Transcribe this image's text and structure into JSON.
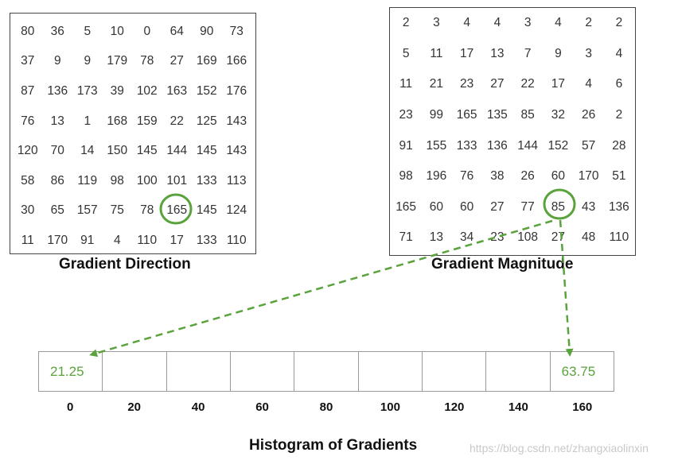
{
  "gradient_direction": {
    "caption": "Gradient Direction",
    "rows": [
      [
        "80",
        "36",
        "5",
        "10",
        "0",
        "64",
        "90",
        "73"
      ],
      [
        "37",
        "9",
        "9",
        "179",
        "78",
        "27",
        "169",
        "166"
      ],
      [
        "87",
        "136",
        "173",
        "39",
        "102",
        "163",
        "152",
        "176"
      ],
      [
        "76",
        "13",
        "1",
        "168",
        "159",
        "22",
        "125",
        "143"
      ],
      [
        "120",
        "70",
        "14",
        "150",
        "145",
        "144",
        "145",
        "143"
      ],
      [
        "58",
        "86",
        "119",
        "98",
        "100",
        "101",
        "133",
        "113"
      ],
      [
        "30",
        "65",
        "157",
        "75",
        "78",
        "165",
        "145",
        "124"
      ],
      [
        "11",
        "170",
        "91",
        "4",
        "110",
        "17",
        "133",
        "110"
      ]
    ],
    "highlighted": "165"
  },
  "gradient_magnitude": {
    "caption": "Gradient Magnitude",
    "rows": [
      [
        "2",
        "3",
        "4",
        "4",
        "3",
        "4",
        "2",
        "2"
      ],
      [
        "5",
        "11",
        "17",
        "13",
        "7",
        "9",
        "3",
        "4"
      ],
      [
        "11",
        "21",
        "23",
        "27",
        "22",
        "17",
        "4",
        "6"
      ],
      [
        "23",
        "99",
        "165",
        "135",
        "85",
        "32",
        "26",
        "2"
      ],
      [
        "91",
        "155",
        "133",
        "136",
        "144",
        "152",
        "57",
        "28"
      ],
      [
        "98",
        "196",
        "76",
        "38",
        "26",
        "60",
        "170",
        "51"
      ],
      [
        "165",
        "60",
        "60",
        "27",
        "77",
        "85",
        "43",
        "136"
      ],
      [
        "71",
        "13",
        "34",
        "23",
        "108",
        "27",
        "48",
        "110"
      ]
    ],
    "highlighted": "85"
  },
  "histogram": {
    "caption": "Histogram of Gradients",
    "bins": [
      "0",
      "20",
      "40",
      "60",
      "80",
      "100",
      "120",
      "140",
      "160"
    ],
    "values": [
      "21.25",
      "",
      "",
      "",
      "",
      "",
      "",
      "",
      "63.75"
    ]
  },
  "colors": {
    "accent": "#5aa33c",
    "border": "#444444"
  },
  "watermark": "https://blog.csdn.net/zhangxiaolinxin"
}
